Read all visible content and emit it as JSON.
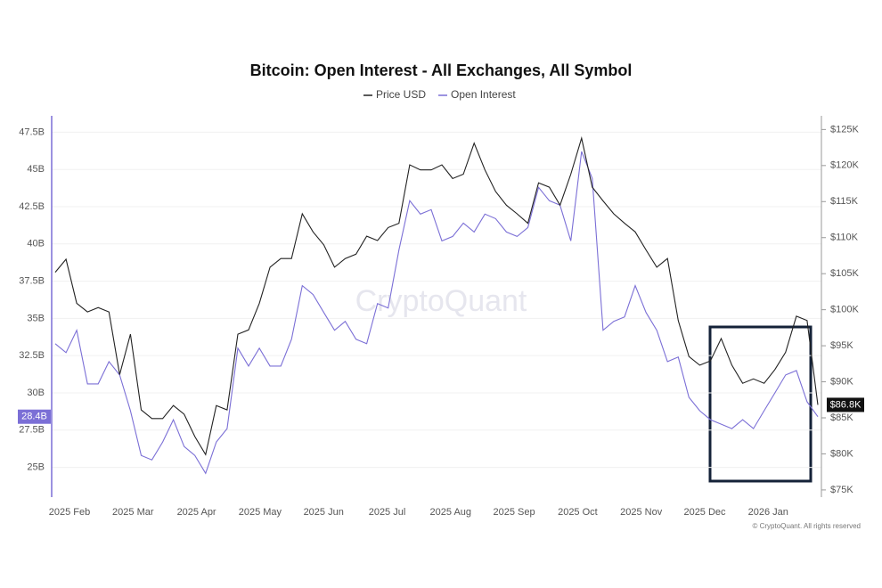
{
  "chart_data": {
    "type": "line",
    "title": "Bitcoin: Open Interest - All Exchanges, All Symbol",
    "watermark": "CryptoQuant",
    "footnote": "© CryptoQuant. All rights reserved",
    "x_labels": [
      "2025 Feb",
      "2025 Mar",
      "2025 Apr",
      "2025 May",
      "2025 Jun",
      "2025 Jul",
      "2025 Aug",
      "2025 Sep",
      "2025 Oct",
      "2025 Nov",
      "2025 Dec",
      "2026 Jan"
    ],
    "ylim": [
      23,
      48.6
    ],
    "yticks": [
      {
        "value": 25,
        "label": "25B"
      },
      {
        "value": 27.5,
        "label": "27.5B"
      },
      {
        "value": 30,
        "label": "30B"
      },
      {
        "value": 32.5,
        "label": "32.5B"
      },
      {
        "value": 35,
        "label": "35B"
      },
      {
        "value": 37.5,
        "label": "37.5B"
      },
      {
        "value": 40,
        "label": "40B"
      },
      {
        "value": 42.5,
        "label": "42.5B"
      },
      {
        "value": 45,
        "label": "45B"
      },
      {
        "value": 47.5,
        "label": "47.5B"
      }
    ],
    "y2lim": [
      74,
      126.9
    ],
    "y2ticks": [
      {
        "value": 75,
        "label": "$75K"
      },
      {
        "value": 80,
        "label": "$80K"
      },
      {
        "value": 85,
        "label": "$85K"
      },
      {
        "value": 90,
        "label": "$90K"
      },
      {
        "value": 95,
        "label": "$95K"
      },
      {
        "value": 100,
        "label": "$100K"
      },
      {
        "value": 105,
        "label": "$105K"
      },
      {
        "value": 110,
        "label": "$110K"
      },
      {
        "value": 115,
        "label": "$115K"
      },
      {
        "value": 120,
        "label": "$120K"
      },
      {
        "value": 125,
        "label": "$125K"
      }
    ],
    "grid": true,
    "series": [
      {
        "name": "Price USD",
        "color": "#222222",
        "axis": "y2",
        "last_label": "$86.8K",
        "values": [
          105.2,
          107.0,
          100.9,
          99.7,
          100.3,
          99.7,
          91.0,
          96.6,
          86.1,
          84.9,
          84.9,
          86.7,
          85.5,
          82.4,
          79.9,
          86.7,
          86.1,
          96.6,
          97.2,
          100.9,
          105.9,
          107.1,
          107.1,
          113.3,
          110.8,
          109.0,
          105.9,
          107.1,
          107.7,
          110.2,
          109.6,
          111.4,
          112.0,
          120.1,
          119.4,
          119.4,
          120.1,
          118.2,
          118.8,
          123.1,
          119.4,
          116.4,
          114.5,
          113.3,
          112.0,
          117.6,
          117.0,
          114.5,
          118.8,
          123.8,
          117.0,
          115.1,
          113.3,
          112.0,
          110.8,
          108.3,
          105.9,
          107.1,
          98.5,
          93.5,
          92.3,
          92.9,
          96.0,
          92.3,
          89.8,
          90.4,
          89.8,
          91.7,
          94.1,
          99.1,
          98.5,
          86.8
        ]
      },
      {
        "name": "Open Interest",
        "color": "#7b6fd6",
        "axis": "y",
        "last_label": "28.4B",
        "values": [
          33.3,
          32.7,
          34.2,
          30.6,
          30.6,
          32.1,
          31.2,
          28.8,
          25.8,
          25.5,
          26.7,
          28.2,
          26.4,
          25.8,
          24.6,
          26.7,
          27.6,
          33.0,
          31.8,
          33.0,
          31.8,
          31.8,
          33.6,
          37.2,
          36.6,
          35.4,
          34.2,
          34.8,
          33.6,
          33.3,
          36.0,
          35.7,
          39.6,
          42.9,
          42.0,
          42.3,
          40.2,
          40.5,
          41.4,
          40.8,
          42.0,
          41.7,
          40.8,
          40.5,
          41.1,
          43.8,
          42.9,
          42.6,
          40.2,
          46.2,
          44.4,
          34.2,
          34.8,
          35.1,
          37.2,
          35.4,
          34.2,
          32.1,
          32.4,
          29.7,
          28.8,
          28.2,
          27.9,
          27.6,
          28.2,
          27.6,
          28.8,
          30.0,
          31.2,
          31.5,
          29.4,
          28.4
        ]
      }
    ]
  }
}
